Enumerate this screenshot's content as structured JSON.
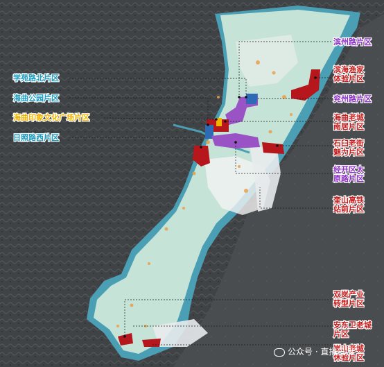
{
  "colors": {
    "background": "#3a3d3f",
    "coast_band": "#4a9fb5",
    "land": "#c5e3d6",
    "built": "#f2f2f2",
    "accent_orange": "#e9a04e",
    "purple": "#9a53c4",
    "red": "#b5171d",
    "blue": "#2f6ab5",
    "label_red": "#c81d1d",
    "label_purple": "#8f2fc9",
    "label_teal": "#1a9bc0",
    "label_gold": "#f0b400"
  },
  "left_labels": [
    {
      "text": "学苑路北片区",
      "color": "#1a9bc0"
    },
    {
      "text": "海曲公园片区",
      "color": "#1a9bc0"
    },
    {
      "text": "海曲印象文化广场片区",
      "color": "#f0b400"
    },
    {
      "text": "日照路西片区",
      "color": "#1a9bc0"
    }
  ],
  "right_labels": [
    {
      "text": "滨州路片区",
      "color": "#8f2fc9"
    },
    {
      "text": "滨海渔家\n体验片区",
      "color": "#c81d1d"
    },
    {
      "text": "兖州路片区",
      "color": "#8f2fc9"
    },
    {
      "text": "海曲老城\n南居片区",
      "color": "#c81d1d"
    },
    {
      "text": "石臼老街\n魅力片区",
      "color": "#c81d1d"
    },
    {
      "text": "经开区太\n原路片区",
      "color": "#8f2fc9"
    },
    {
      "text": "奎山高铁\n站前片区",
      "color": "#c81d1d"
    },
    {
      "text": "双岚产业\n转型片区",
      "color": "#c81d1d"
    },
    {
      "text": "安东卫老城\n片区",
      "color": "#c81d1d"
    },
    {
      "text": "岚山老城\n休验片区",
      "color": "#c81d1d"
    }
  ],
  "watermark": {
    "icon": "wechat-icon",
    "text": "公众号 · 直播日照"
  }
}
